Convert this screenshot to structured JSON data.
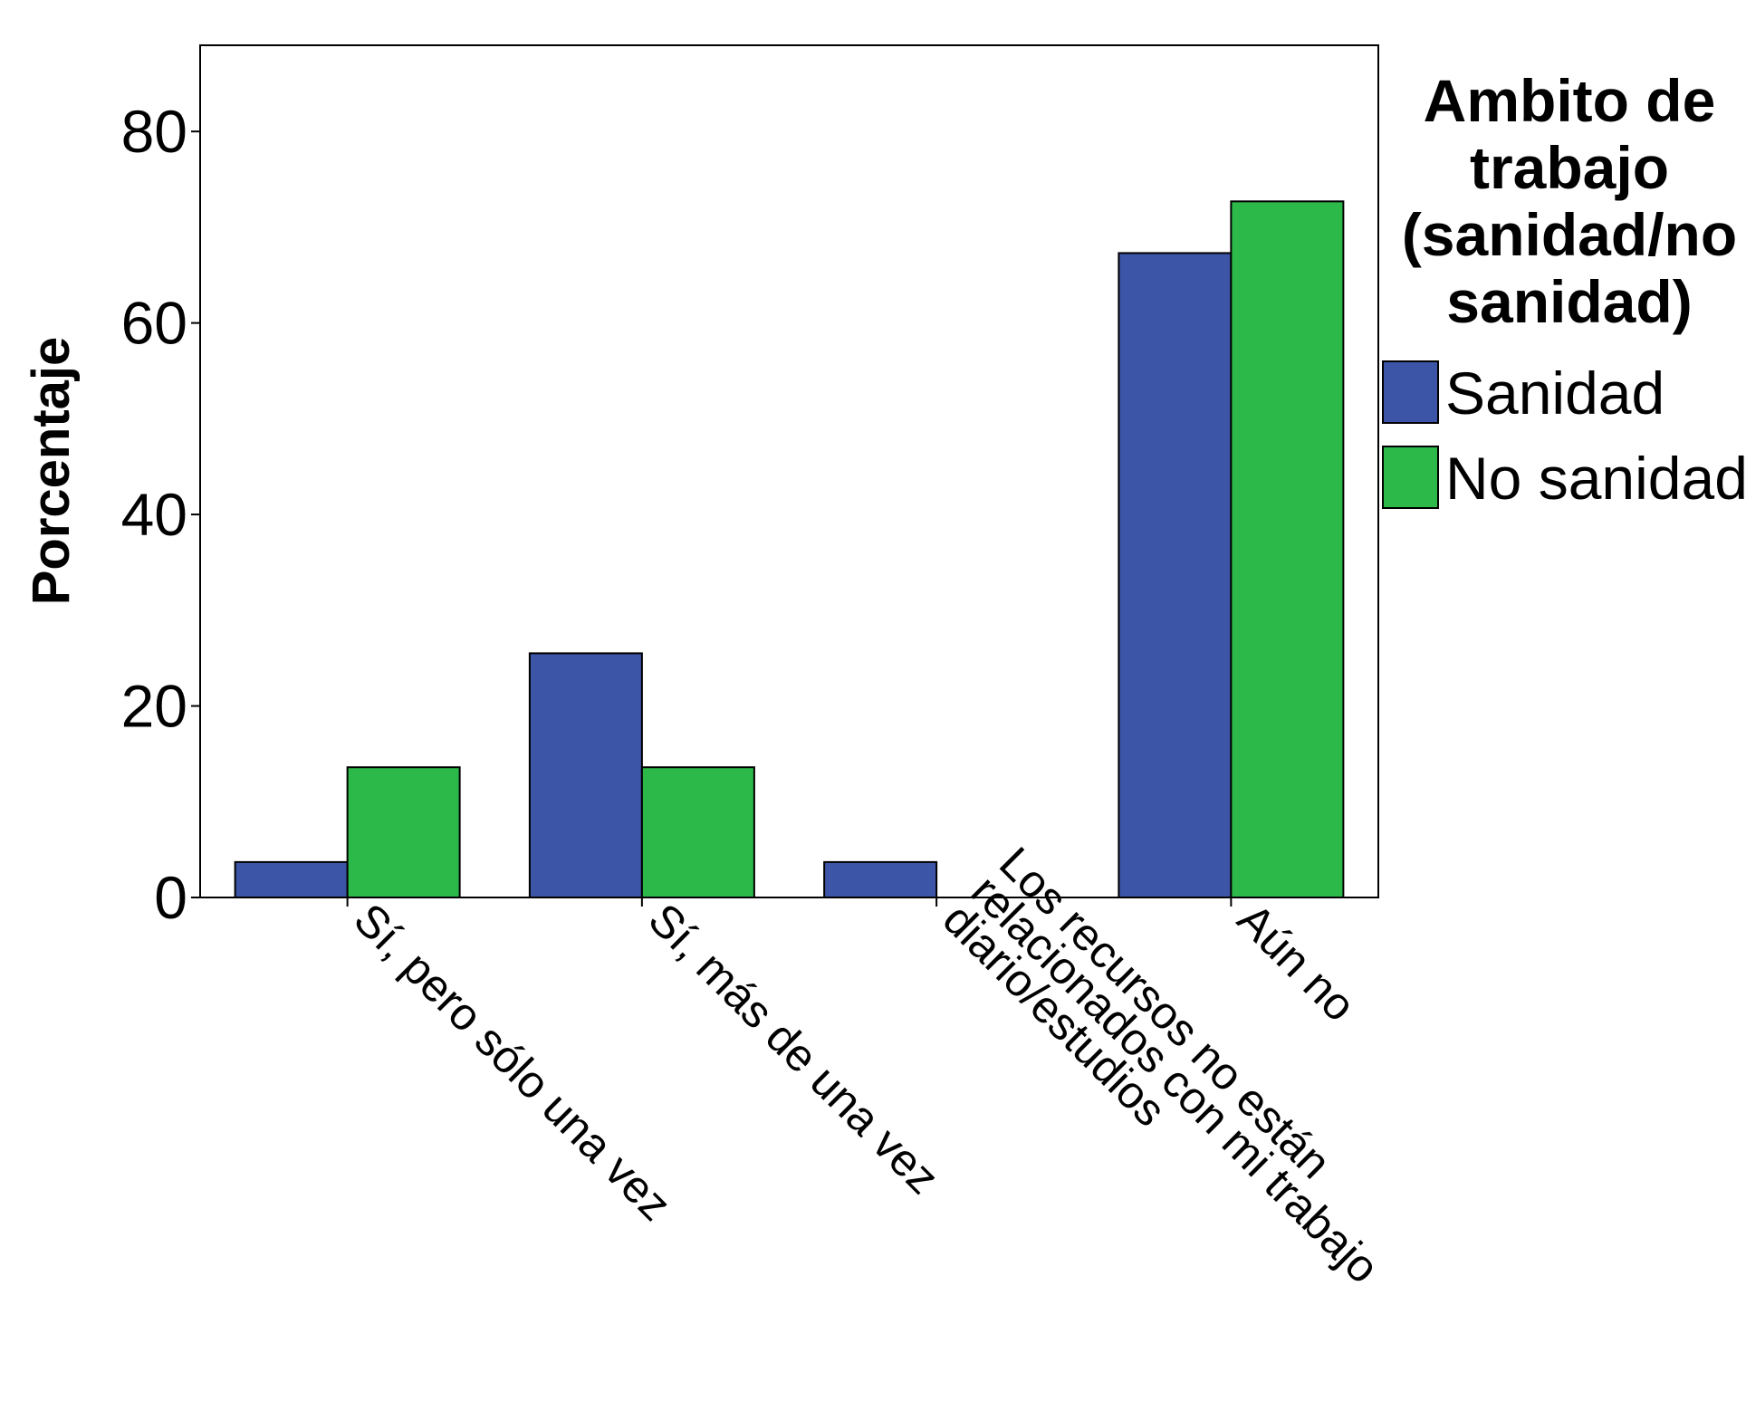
{
  "chart_data": {
    "type": "bar",
    "categories": [
      [
        "Sí, pero sólo una vez"
      ],
      [
        "Sí, más de una vez"
      ],
      [
        "Los recursos no están",
        "relacionados con mi trabajo",
        "diario/estudios"
      ],
      [
        "Aún no"
      ]
    ],
    "series": [
      {
        "name": "Sanidad",
        "values": [
          3.7,
          25.5,
          3.7,
          67.3
        ],
        "color": "#3d55a6"
      },
      {
        "name": "No sanidad",
        "values": [
          13.6,
          13.6,
          0,
          72.7
        ],
        "color": "#2db84a"
      }
    ],
    "title": "",
    "xlabel": "",
    "ylabel": "Porcentaje",
    "ylim": [
      0,
      89
    ],
    "yticks": [
      0,
      20,
      40,
      60,
      80
    ],
    "grid": false,
    "legend": {
      "title": [
        "Ambito de",
        "trabajo",
        "(sanidad/no",
        "sanidad)"
      ],
      "position": "right"
    }
  }
}
